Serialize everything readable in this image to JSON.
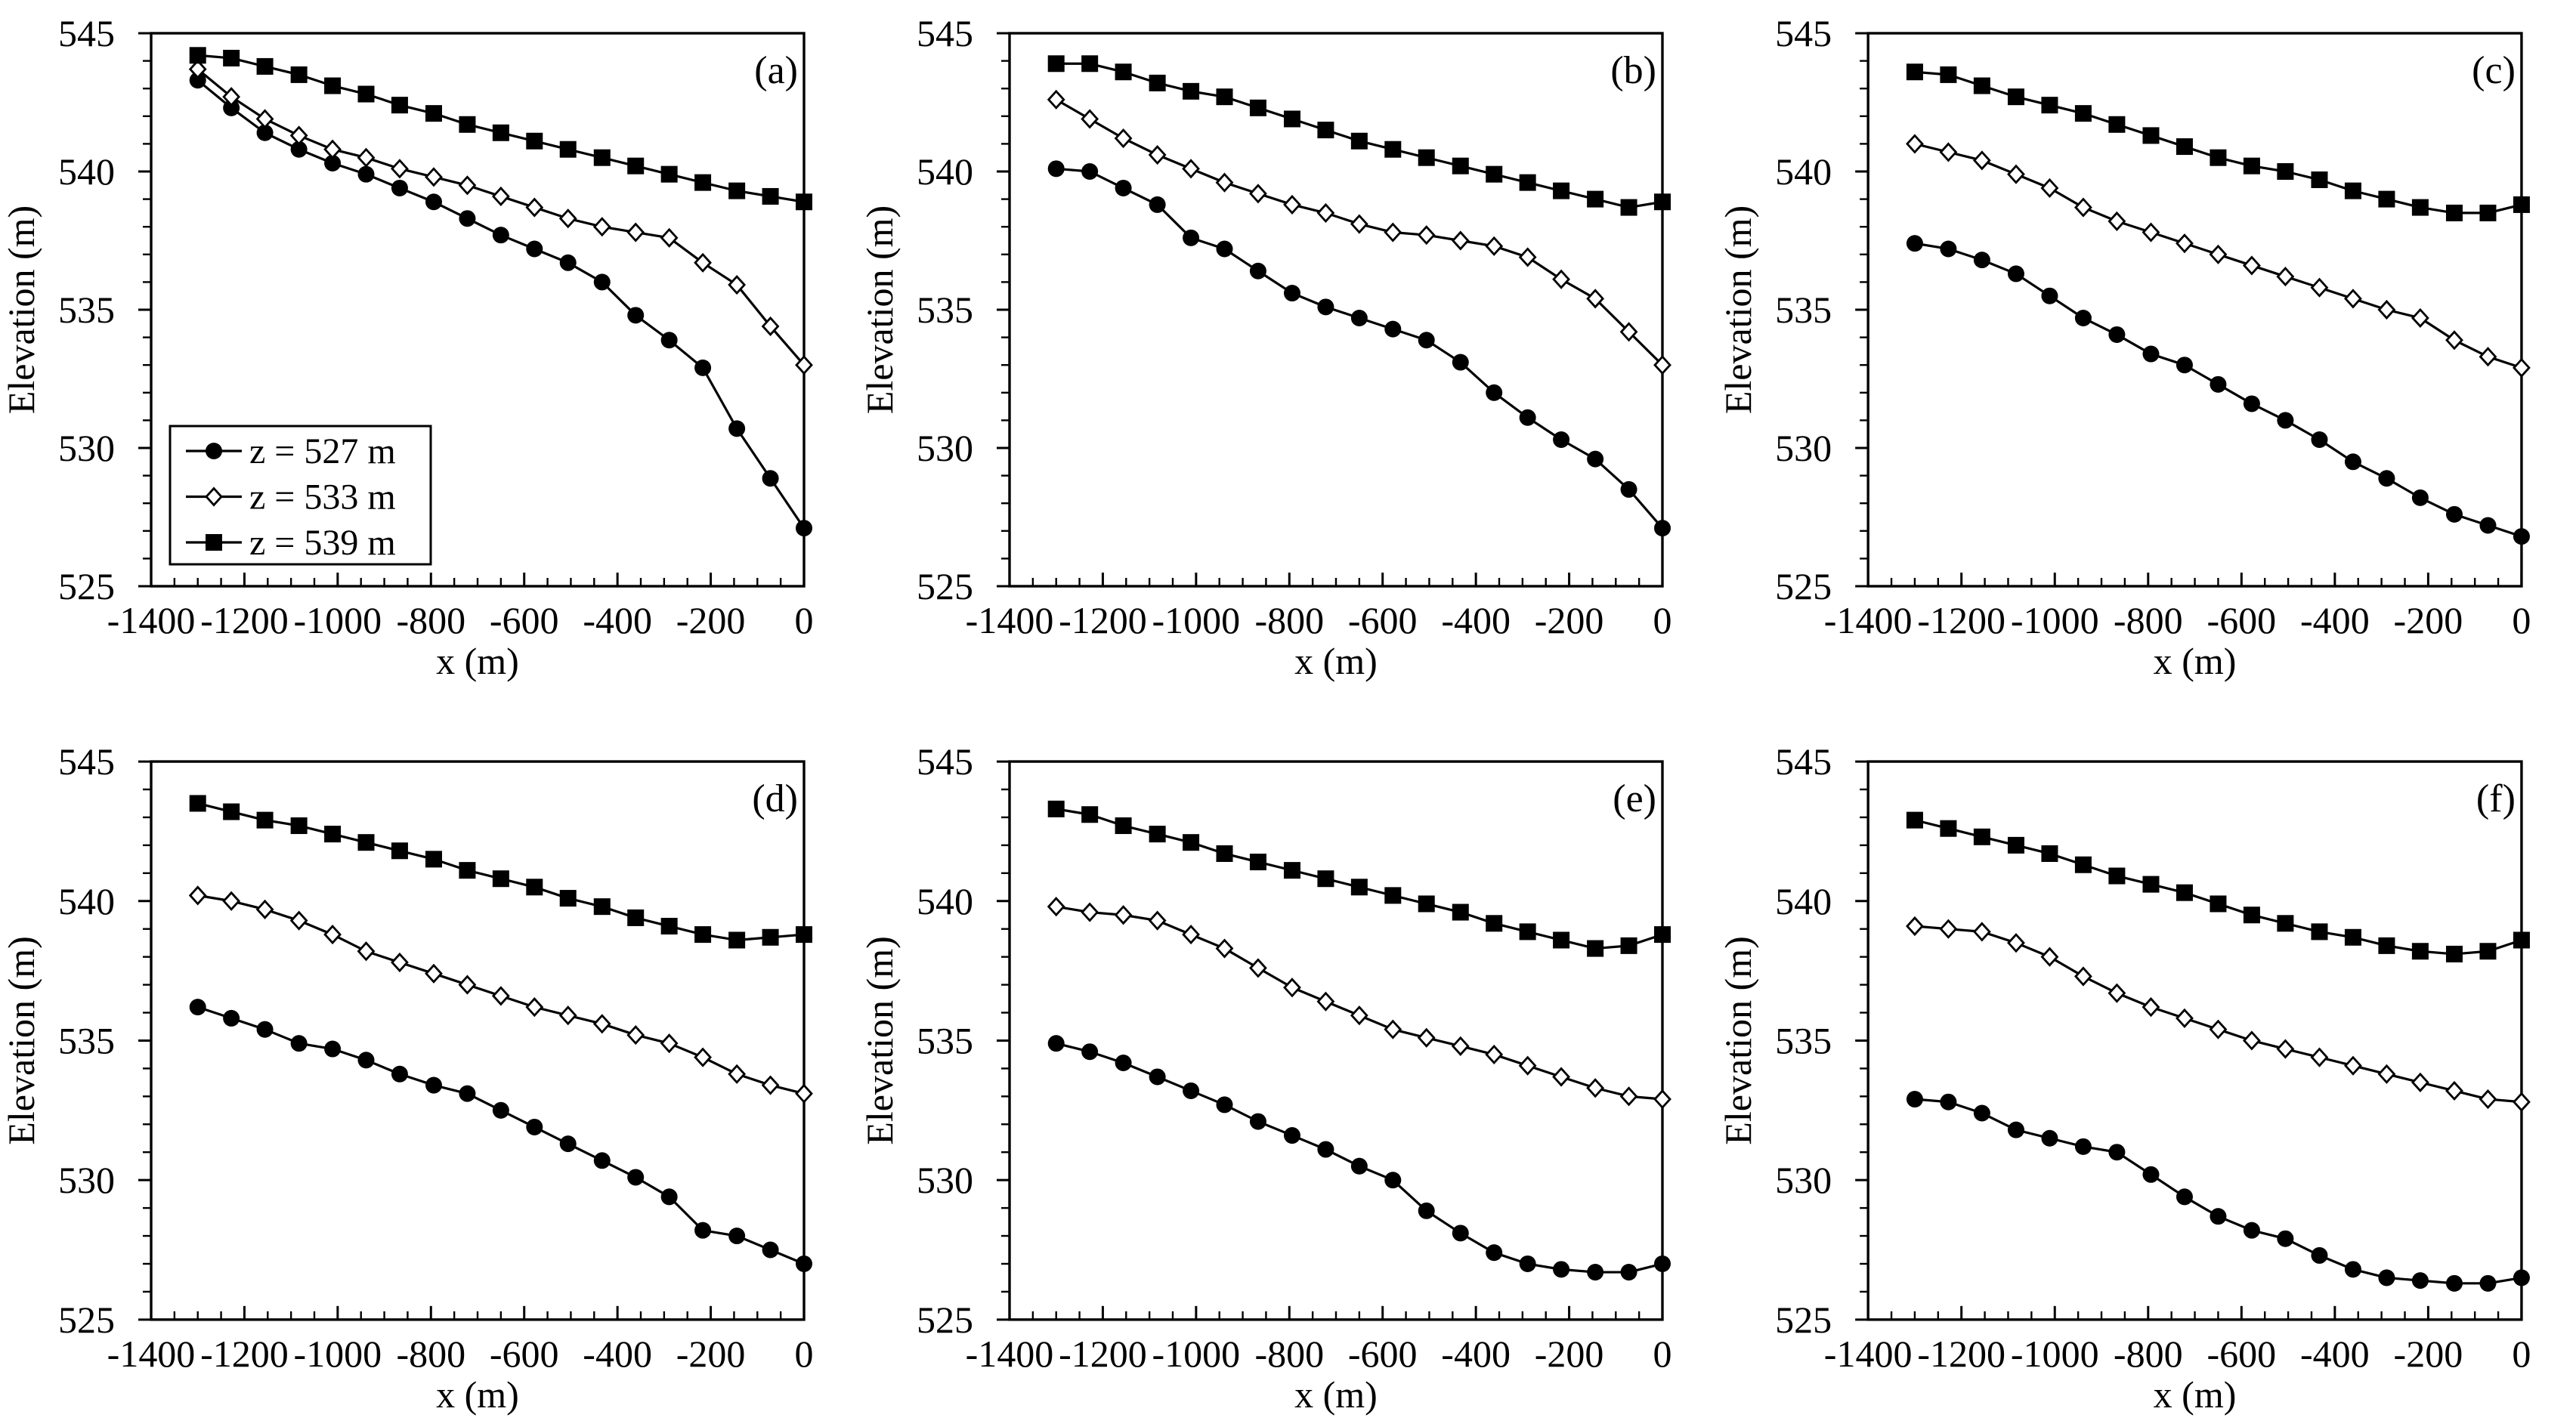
{
  "figure": {
    "background": "#ffffff",
    "ink_color": "#000000",
    "axes": {
      "x": {
        "label": "x (m)",
        "min": -1400,
        "max": 0,
        "major_tick_step": 200,
        "minor_tick_step": 50,
        "tick_labels": [
          "-1400",
          "-1200",
          "-1000",
          "-800",
          "-600",
          "-400",
          "-200",
          "0"
        ]
      },
      "y": {
        "label": "Elevation (m)",
        "min": 525,
        "max": 545,
        "major_tick_step": 5,
        "minor_tick_step": 1,
        "tick_labels": [
          "525",
          "530",
          "535",
          "540",
          "545"
        ]
      }
    },
    "legend": {
      "shown_in_panel": "(a)",
      "position": "lower-left",
      "entries": [
        {
          "label": "z = 527 m",
          "marker": "filled-circle"
        },
        {
          "label": "z = 533 m",
          "marker": "open-diamond"
        },
        {
          "label": "z = 539 m",
          "marker": "filled-square"
        }
      ]
    }
  },
  "chart_data": [
    {
      "type": "line",
      "panel_label": "(a)",
      "xlabel": "x (m)",
      "ylabel": "Elevation (m)",
      "xlim": [
        -1400,
        0
      ],
      "ylim": [
        525,
        545
      ],
      "grid": false,
      "show_legend": true,
      "x": [
        -1300,
        -1228,
        -1156,
        -1083,
        -1011,
        -939,
        -867,
        -794,
        -722,
        -650,
        -578,
        -506,
        -433,
        -361,
        -289,
        -217,
        -144,
        -72,
        0
      ],
      "series": [
        {
          "name": "z = 527 m",
          "marker": "filled-circle",
          "color": "#000000",
          "values": [
            543.3,
            542.3,
            541.4,
            540.8,
            540.3,
            539.9,
            539.4,
            538.9,
            538.3,
            537.7,
            537.2,
            536.7,
            536.0,
            534.8,
            533.9,
            532.9,
            530.7,
            528.9,
            527.1
          ]
        },
        {
          "name": "z = 533 m",
          "marker": "open-diamond",
          "color": "#000000",
          "values": [
            543.7,
            542.7,
            541.9,
            541.3,
            540.8,
            540.5,
            540.1,
            539.8,
            539.5,
            539.1,
            538.7,
            538.3,
            538.0,
            537.8,
            537.6,
            536.7,
            535.9,
            534.4,
            533.0
          ]
        },
        {
          "name": "z = 539 m",
          "marker": "filled-square",
          "color": "#000000",
          "values": [
            544.2,
            544.1,
            543.8,
            543.5,
            543.1,
            542.8,
            542.4,
            542.1,
            541.7,
            541.4,
            541.1,
            540.8,
            540.5,
            540.2,
            539.9,
            539.6,
            539.3,
            539.1,
            538.9
          ]
        }
      ]
    },
    {
      "type": "line",
      "panel_label": "(b)",
      "xlabel": "x (m)",
      "ylabel": "Elevation (m)",
      "xlim": [
        -1400,
        0
      ],
      "ylim": [
        525,
        545
      ],
      "grid": false,
      "show_legend": false,
      "x": [
        -1300,
        -1228,
        -1156,
        -1083,
        -1011,
        -939,
        -867,
        -794,
        -722,
        -650,
        -578,
        -506,
        -433,
        -361,
        -289,
        -217,
        -144,
        -72,
        0
      ],
      "series": [
        {
          "name": "z = 527 m",
          "marker": "filled-circle",
          "color": "#000000",
          "values": [
            540.1,
            540.0,
            539.4,
            538.8,
            537.6,
            537.2,
            536.4,
            535.6,
            535.1,
            534.7,
            534.3,
            533.9,
            533.1,
            532.0,
            531.1,
            530.3,
            529.6,
            528.5,
            527.1
          ]
        },
        {
          "name": "z = 533 m",
          "marker": "open-diamond",
          "color": "#000000",
          "values": [
            542.6,
            541.9,
            541.2,
            540.6,
            540.1,
            539.6,
            539.2,
            538.8,
            538.5,
            538.1,
            537.8,
            537.7,
            537.5,
            537.3,
            536.9,
            536.1,
            535.4,
            534.2,
            533.0
          ]
        },
        {
          "name": "z = 539 m",
          "marker": "filled-square",
          "color": "#000000",
          "values": [
            543.9,
            543.9,
            543.6,
            543.2,
            542.9,
            542.7,
            542.3,
            541.9,
            541.5,
            541.1,
            540.8,
            540.5,
            540.2,
            539.9,
            539.6,
            539.3,
            539.0,
            538.7,
            538.9
          ]
        }
      ]
    },
    {
      "type": "line",
      "panel_label": "(c)",
      "xlabel": "x (m)",
      "ylabel": "Elevation (m)",
      "xlim": [
        -1400,
        0
      ],
      "ylim": [
        525,
        545
      ],
      "grid": false,
      "show_legend": false,
      "x": [
        -1300,
        -1228,
        -1156,
        -1083,
        -1011,
        -939,
        -867,
        -794,
        -722,
        -650,
        -578,
        -506,
        -433,
        -361,
        -289,
        -217,
        -144,
        -72,
        0
      ],
      "series": [
        {
          "name": "z = 527 m",
          "marker": "filled-circle",
          "color": "#000000",
          "values": [
            537.4,
            537.2,
            536.8,
            536.3,
            535.5,
            534.7,
            534.1,
            533.4,
            533.0,
            532.3,
            531.6,
            531.0,
            530.3,
            529.5,
            528.9,
            528.2,
            527.6,
            527.2,
            526.8
          ]
        },
        {
          "name": "z = 533 m",
          "marker": "open-diamond",
          "color": "#000000",
          "values": [
            541.0,
            540.7,
            540.4,
            539.9,
            539.4,
            538.7,
            538.2,
            537.8,
            537.4,
            537.0,
            536.6,
            536.2,
            535.8,
            535.4,
            535.0,
            534.7,
            533.9,
            533.3,
            532.9
          ]
        },
        {
          "name": "z = 539 m",
          "marker": "filled-square",
          "color": "#000000",
          "values": [
            543.6,
            543.5,
            543.1,
            542.7,
            542.4,
            542.1,
            541.7,
            541.3,
            540.9,
            540.5,
            540.2,
            540.0,
            539.7,
            539.3,
            539.0,
            538.7,
            538.5,
            538.5,
            538.8
          ]
        }
      ]
    },
    {
      "type": "line",
      "panel_label": "(d)",
      "xlabel": "x (m)",
      "ylabel": "Elevation (m)",
      "xlim": [
        -1400,
        0
      ],
      "ylim": [
        525,
        545
      ],
      "grid": false,
      "show_legend": false,
      "x": [
        -1300,
        -1228,
        -1156,
        -1083,
        -1011,
        -939,
        -867,
        -794,
        -722,
        -650,
        -578,
        -506,
        -433,
        -361,
        -289,
        -217,
        -144,
        -72,
        0
      ],
      "series": [
        {
          "name": "z = 527 m",
          "marker": "filled-circle",
          "color": "#000000",
          "values": [
            536.2,
            535.8,
            535.4,
            534.9,
            534.7,
            534.3,
            533.8,
            533.4,
            533.1,
            532.5,
            531.9,
            531.3,
            530.7,
            530.1,
            529.4,
            528.2,
            528.0,
            527.5,
            527.0
          ]
        },
        {
          "name": "z = 533 m",
          "marker": "open-diamond",
          "color": "#000000",
          "values": [
            540.2,
            540.0,
            539.7,
            539.3,
            538.8,
            538.2,
            537.8,
            537.4,
            537.0,
            536.6,
            536.2,
            535.9,
            535.6,
            535.2,
            534.9,
            534.4,
            533.8,
            533.4,
            533.1
          ]
        },
        {
          "name": "z = 539 m",
          "marker": "filled-square",
          "color": "#000000",
          "values": [
            543.5,
            543.2,
            542.9,
            542.7,
            542.4,
            542.1,
            541.8,
            541.5,
            541.1,
            540.8,
            540.5,
            540.1,
            539.8,
            539.4,
            539.1,
            538.8,
            538.6,
            538.7,
            538.8
          ]
        }
      ]
    },
    {
      "type": "line",
      "panel_label": "(e)",
      "xlabel": "x (m)",
      "ylabel": "Elevation (m)",
      "xlim": [
        -1400,
        0
      ],
      "ylim": [
        525,
        545
      ],
      "grid": false,
      "show_legend": false,
      "x": [
        -1300,
        -1228,
        -1156,
        -1083,
        -1011,
        -939,
        -867,
        -794,
        -722,
        -650,
        -578,
        -506,
        -433,
        -361,
        -289,
        -217,
        -144,
        -72,
        0
      ],
      "series": [
        {
          "name": "z = 527 m",
          "marker": "filled-circle",
          "color": "#000000",
          "values": [
            534.9,
            534.6,
            534.2,
            533.7,
            533.2,
            532.7,
            532.1,
            531.6,
            531.1,
            530.5,
            530.0,
            528.9,
            528.1,
            527.4,
            527.0,
            526.8,
            526.7,
            526.7,
            527.0
          ]
        },
        {
          "name": "z = 533 m",
          "marker": "open-diamond",
          "color": "#000000",
          "values": [
            539.8,
            539.6,
            539.5,
            539.3,
            538.8,
            538.3,
            537.6,
            536.9,
            536.4,
            535.9,
            535.4,
            535.1,
            534.8,
            534.5,
            534.1,
            533.7,
            533.3,
            533.0,
            532.9
          ]
        },
        {
          "name": "z = 539 m",
          "marker": "filled-square",
          "color": "#000000",
          "values": [
            543.3,
            543.1,
            542.7,
            542.4,
            542.1,
            541.7,
            541.4,
            541.1,
            540.8,
            540.5,
            540.2,
            539.9,
            539.6,
            539.2,
            538.9,
            538.6,
            538.3,
            538.4,
            538.8
          ]
        }
      ]
    },
    {
      "type": "line",
      "panel_label": "(f)",
      "xlabel": "x (m)",
      "ylabel": "Elevation (m)",
      "xlim": [
        -1400,
        0
      ],
      "ylim": [
        525,
        545
      ],
      "grid": false,
      "show_legend": false,
      "x": [
        -1300,
        -1228,
        -1156,
        -1083,
        -1011,
        -939,
        -867,
        -794,
        -722,
        -650,
        -578,
        -506,
        -433,
        -361,
        -289,
        -217,
        -144,
        -72,
        0
      ],
      "series": [
        {
          "name": "z = 527 m",
          "marker": "filled-circle",
          "color": "#000000",
          "values": [
            532.9,
            532.8,
            532.4,
            531.8,
            531.5,
            531.2,
            531.0,
            530.2,
            529.4,
            528.7,
            528.2,
            527.9,
            527.3,
            526.8,
            526.5,
            526.4,
            526.3,
            526.3,
            526.5
          ]
        },
        {
          "name": "z = 533 m",
          "marker": "open-diamond",
          "color": "#000000",
          "values": [
            539.1,
            539.0,
            538.9,
            538.5,
            538.0,
            537.3,
            536.7,
            536.2,
            535.8,
            535.4,
            535.0,
            534.7,
            534.4,
            534.1,
            533.8,
            533.5,
            533.2,
            532.9,
            532.8
          ]
        },
        {
          "name": "z = 539 m",
          "marker": "filled-square",
          "color": "#000000",
          "values": [
            542.9,
            542.6,
            542.3,
            542.0,
            541.7,
            541.3,
            540.9,
            540.6,
            540.3,
            539.9,
            539.5,
            539.2,
            538.9,
            538.7,
            538.4,
            538.2,
            538.1,
            538.2,
            538.6
          ]
        }
      ]
    }
  ]
}
